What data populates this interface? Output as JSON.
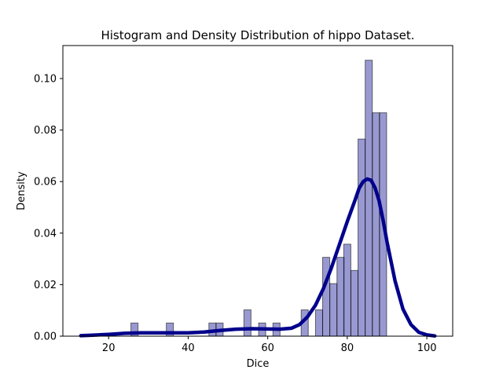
{
  "chart_data": {
    "type": "bar",
    "title": "Histogram and Density Distribution of hippo Dataset.",
    "xlabel": "Dice",
    "ylabel": "Density",
    "xlim": [
      8.5,
      106.5
    ],
    "ylim": [
      0,
      0.1128
    ],
    "xticks": [
      "20",
      "40",
      "60",
      "80",
      "100"
    ],
    "yticks": [
      "0.00",
      "0.02",
      "0.04",
      "0.06",
      "0.08",
      "0.10"
    ],
    "grid": false,
    "legend": "none",
    "bin_width": 1.785,
    "histogram": {
      "name": "hippo",
      "color": "#00008b",
      "bins": [
        {
          "x": 26.5,
          "density": 0.0051
        },
        {
          "x": 35.4,
          "density": 0.0051
        },
        {
          "x": 46.1,
          "density": 0.0051
        },
        {
          "x": 47.9,
          "density": 0.0051
        },
        {
          "x": 54.9,
          "density": 0.0102
        },
        {
          "x": 58.6,
          "density": 0.0051
        },
        {
          "x": 62.2,
          "density": 0.0051
        },
        {
          "x": 69.3,
          "density": 0.0102
        },
        {
          "x": 72.9,
          "density": 0.0102
        },
        {
          "x": 74.7,
          "density": 0.0306
        },
        {
          "x": 76.5,
          "density": 0.0204
        },
        {
          "x": 78.3,
          "density": 0.0306
        },
        {
          "x": 80.0,
          "density": 0.0357
        },
        {
          "x": 81.8,
          "density": 0.0255
        },
        {
          "x": 83.6,
          "density": 0.0765
        },
        {
          "x": 85.4,
          "density": 0.1071
        },
        {
          "x": 87.2,
          "density": 0.0867
        },
        {
          "x": 89.0,
          "density": 0.0867
        }
      ]
    },
    "density_curve": {
      "name": "hippo",
      "color": "#00008b",
      "x": [
        13,
        16,
        20,
        24,
        28,
        32,
        36,
        40,
        44,
        48,
        52,
        56,
        60,
        63,
        66,
        68,
        70,
        72,
        74,
        76,
        78,
        80,
        82,
        83,
        84,
        85,
        86,
        87,
        88,
        89,
        90,
        92,
        94,
        96,
        98,
        100,
        102
      ],
      "y": [
        0.0002,
        0.0004,
        0.0007,
        0.0011,
        0.0013,
        0.0013,
        0.0013,
        0.0013,
        0.0016,
        0.0022,
        0.0027,
        0.0029,
        0.0028,
        0.0027,
        0.0031,
        0.0045,
        0.0075,
        0.012,
        0.0185,
        0.0265,
        0.0355,
        0.0445,
        0.053,
        0.0575,
        0.06,
        0.061,
        0.0605,
        0.0575,
        0.0525,
        0.045,
        0.0365,
        0.0215,
        0.0105,
        0.0045,
        0.0015,
        0.0005,
        0.0001
      ]
    }
  }
}
